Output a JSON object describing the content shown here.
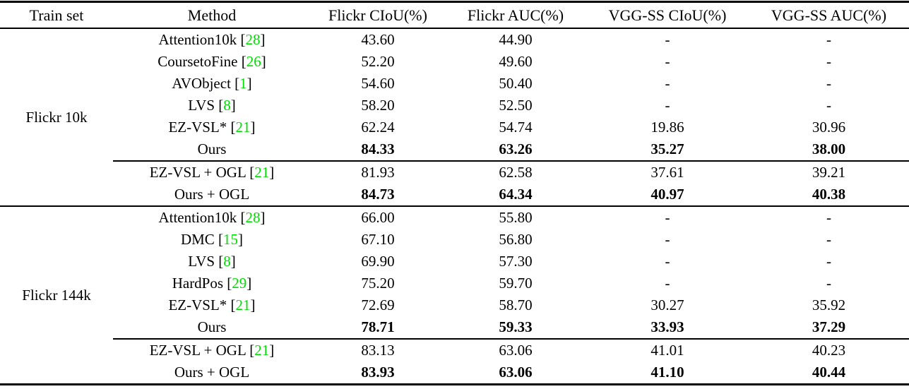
{
  "table": {
    "headers": [
      "Train set",
      "Method",
      "Flickr CIoU(%)",
      "Flickr AUC(%)",
      "VGG-SS CIoU(%)",
      "VGG-SS AUC(%)"
    ],
    "citation_color": "#00dd00",
    "citation_brackets": [
      "[",
      "]"
    ],
    "groups": [
      {
        "train_set": "Flickr 10k",
        "rows": [
          {
            "method": "Attention10k",
            "cite": "28",
            "values": [
              "43.60",
              "44.90",
              "-",
              "-"
            ],
            "bold": false,
            "section": "main"
          },
          {
            "method": "CoursetoFine",
            "cite": "26",
            "values": [
              "52.20",
              "49.60",
              "-",
              "-"
            ],
            "bold": false,
            "section": "main"
          },
          {
            "method": "AVObject",
            "cite": "1",
            "values": [
              "54.60",
              "50.40",
              "-",
              "-"
            ],
            "bold": false,
            "section": "main"
          },
          {
            "method": "LVS",
            "cite": "8",
            "values": [
              "58.20",
              "52.50",
              "-",
              "-"
            ],
            "bold": false,
            "section": "main"
          },
          {
            "method": "EZ-VSL*",
            "cite": "21",
            "values": [
              "62.24",
              "54.74",
              "19.86",
              "30.96"
            ],
            "bold": false,
            "section": "main"
          },
          {
            "method": "Ours",
            "cite": null,
            "values": [
              "84.33",
              "63.26",
              "35.27",
              "38.00"
            ],
            "bold": true,
            "section": "main"
          },
          {
            "method": "EZ-VSL + OGL",
            "cite": "21",
            "values": [
              "81.93",
              "62.58",
              "37.61",
              "39.21"
            ],
            "bold": false,
            "section": "ogl"
          },
          {
            "method": "Ours + OGL",
            "cite": null,
            "values": [
              "84.73",
              "64.34",
              "40.97",
              "40.38"
            ],
            "bold": true,
            "section": "ogl"
          }
        ]
      },
      {
        "train_set": "Flickr 144k",
        "rows": [
          {
            "method": "Attention10k",
            "cite": "28",
            "values": [
              "66.00",
              "55.80",
              "-",
              "-"
            ],
            "bold": false,
            "section": "main"
          },
          {
            "method": "DMC",
            "cite": "15",
            "values": [
              "67.10",
              "56.80",
              "-",
              "-"
            ],
            "bold": false,
            "section": "main"
          },
          {
            "method": "LVS",
            "cite": "8",
            "values": [
              "69.90",
              "57.30",
              "-",
              "-"
            ],
            "bold": false,
            "section": "main"
          },
          {
            "method": "HardPos",
            "cite": "29",
            "values": [
              "75.20",
              "59.70",
              "-",
              "-"
            ],
            "bold": false,
            "section": "main"
          },
          {
            "method": "EZ-VSL*",
            "cite": "21",
            "values": [
              "72.69",
              "58.70",
              "30.27",
              "35.92"
            ],
            "bold": false,
            "section": "main"
          },
          {
            "method": "Ours",
            "cite": null,
            "values": [
              "78.71",
              "59.33",
              "33.93",
              "37.29"
            ],
            "bold": true,
            "section": "main"
          },
          {
            "method": "EZ-VSL + OGL",
            "cite": "21",
            "values": [
              "83.13",
              "63.06",
              "41.01",
              "40.23"
            ],
            "bold": false,
            "section": "ogl"
          },
          {
            "method": "Ours + OGL",
            "cite": null,
            "values": [
              "83.93",
              "63.06",
              "41.10",
              "40.44"
            ],
            "bold": true,
            "section": "ogl"
          }
        ]
      }
    ]
  }
}
